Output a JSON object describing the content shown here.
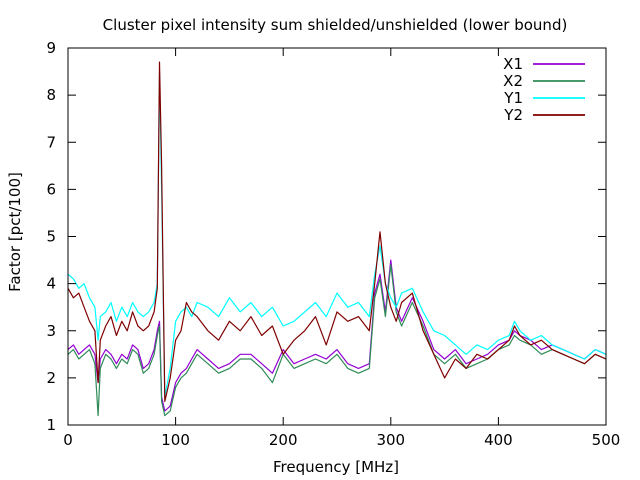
{
  "chart_data": {
    "type": "line",
    "title": "Cluster pixel intensity sum shielded/unshielded (lower bound)",
    "xlabel": "Frequency [MHz]",
    "ylabel": "Factor [pct/100]",
    "xlim": [
      0,
      500
    ],
    "ylim": [
      1,
      9
    ],
    "xticks": [
      0,
      100,
      200,
      300,
      400,
      500
    ],
    "yticks": [
      1,
      2,
      3,
      4,
      5,
      6,
      7,
      8,
      9
    ],
    "grid": false,
    "legend_position": "top-right",
    "series": [
      {
        "name": "X1",
        "color": "#9400d3",
        "x": [
          0,
          5,
          10,
          15,
          20,
          25,
          28,
          30,
          35,
          40,
          45,
          50,
          55,
          60,
          65,
          70,
          75,
          80,
          83,
          85,
          87,
          90,
          95,
          100,
          105,
          110,
          115,
          120,
          130,
          140,
          150,
          160,
          170,
          180,
          190,
          200,
          210,
          220,
          230,
          240,
          250,
          260,
          270,
          280,
          285,
          290,
          295,
          300,
          305,
          310,
          320,
          330,
          340,
          350,
          360,
          370,
          380,
          390,
          400,
          410,
          415,
          420,
          430,
          440,
          450,
          460,
          470,
          480,
          490,
          500
        ],
        "y": [
          2.6,
          2.7,
          2.5,
          2.6,
          2.7,
          2.5,
          1.9,
          2.4,
          2.6,
          2.5,
          2.3,
          2.5,
          2.4,
          2.7,
          2.6,
          2.2,
          2.3,
          2.6,
          3.0,
          3.2,
          1.6,
          1.3,
          1.4,
          1.9,
          2.1,
          2.2,
          2.4,
          2.6,
          2.4,
          2.2,
          2.3,
          2.5,
          2.5,
          2.3,
          2.1,
          2.6,
          2.3,
          2.4,
          2.5,
          2.4,
          2.6,
          2.3,
          2.2,
          2.3,
          3.8,
          4.2,
          3.4,
          4.5,
          3.5,
          3.2,
          3.7,
          3.2,
          2.6,
          2.4,
          2.6,
          2.3,
          2.4,
          2.5,
          2.7,
          2.8,
          3.0,
          2.9,
          2.8,
          2.6,
          2.7,
          2.6,
          2.5,
          2.4,
          2.6,
          2.5
        ]
      },
      {
        "name": "X2",
        "color": "#2e8b57",
        "x": [
          0,
          5,
          10,
          15,
          20,
          25,
          28,
          30,
          35,
          40,
          45,
          50,
          55,
          60,
          65,
          70,
          75,
          80,
          83,
          85,
          87,
          90,
          95,
          100,
          105,
          110,
          115,
          120,
          130,
          140,
          150,
          160,
          170,
          180,
          190,
          200,
          210,
          220,
          230,
          240,
          250,
          260,
          270,
          280,
          285,
          290,
          295,
          300,
          305,
          310,
          320,
          330,
          340,
          350,
          360,
          370,
          380,
          390,
          400,
          410,
          415,
          420,
          430,
          440,
          450,
          460,
          470,
          480,
          490,
          500
        ],
        "y": [
          2.5,
          2.6,
          2.4,
          2.5,
          2.6,
          2.3,
          1.2,
          2.2,
          2.5,
          2.4,
          2.2,
          2.4,
          2.3,
          2.6,
          2.5,
          2.1,
          2.2,
          2.5,
          2.9,
          3.1,
          1.5,
          1.2,
          1.3,
          1.8,
          2.0,
          2.1,
          2.3,
          2.5,
          2.3,
          2.1,
          2.2,
          2.4,
          2.4,
          2.2,
          1.9,
          2.5,
          2.2,
          2.3,
          2.4,
          2.3,
          2.5,
          2.2,
          2.1,
          2.2,
          3.7,
          4.1,
          3.3,
          4.4,
          3.4,
          3.1,
          3.6,
          3.1,
          2.5,
          2.3,
          2.5,
          2.2,
          2.3,
          2.4,
          2.6,
          2.7,
          2.9,
          2.8,
          2.7,
          2.5,
          2.6,
          2.5,
          2.4,
          2.3,
          2.5,
          2.4
        ]
      },
      {
        "name": "Y1",
        "color": "#00ffff",
        "x": [
          0,
          5,
          10,
          15,
          20,
          25,
          28,
          30,
          35,
          40,
          45,
          50,
          55,
          60,
          65,
          70,
          75,
          80,
          83,
          85,
          87,
          90,
          95,
          100,
          105,
          110,
          115,
          120,
          130,
          140,
          150,
          160,
          170,
          180,
          190,
          200,
          210,
          220,
          230,
          240,
          250,
          260,
          270,
          280,
          285,
          290,
          295,
          300,
          305,
          310,
          320,
          330,
          340,
          350,
          360,
          370,
          380,
          390,
          400,
          410,
          415,
          420,
          430,
          440,
          450,
          460,
          470,
          480,
          490,
          500
        ],
        "y": [
          4.2,
          4.1,
          3.9,
          4.0,
          3.7,
          3.5,
          2.8,
          3.3,
          3.4,
          3.6,
          3.2,
          3.5,
          3.3,
          3.6,
          3.4,
          3.3,
          3.4,
          3.6,
          4.0,
          8.4,
          6.0,
          1.6,
          2.2,
          3.2,
          3.4,
          3.5,
          3.3,
          3.6,
          3.5,
          3.3,
          3.7,
          3.4,
          3.6,
          3.3,
          3.5,
          3.1,
          3.2,
          3.4,
          3.6,
          3.3,
          3.8,
          3.5,
          3.6,
          3.3,
          4.2,
          4.8,
          4.0,
          3.7,
          3.5,
          3.8,
          3.9,
          3.4,
          3.0,
          2.9,
          2.7,
          2.5,
          2.7,
          2.6,
          2.8,
          2.9,
          3.2,
          3.0,
          2.8,
          2.9,
          2.7,
          2.6,
          2.5,
          2.4,
          2.6,
          2.5
        ]
      },
      {
        "name": "Y2",
        "color": "#800000",
        "x": [
          0,
          5,
          10,
          15,
          20,
          25,
          28,
          30,
          35,
          40,
          45,
          50,
          55,
          60,
          65,
          70,
          75,
          80,
          83,
          85,
          87,
          90,
          95,
          100,
          105,
          110,
          115,
          120,
          130,
          140,
          150,
          160,
          170,
          180,
          190,
          200,
          210,
          220,
          230,
          240,
          250,
          260,
          270,
          280,
          285,
          290,
          295,
          300,
          305,
          310,
          320,
          330,
          340,
          350,
          360,
          370,
          380,
          390,
          400,
          410,
          415,
          420,
          430,
          440,
          450,
          460,
          470,
          480,
          490,
          500
        ],
        "y": [
          3.9,
          3.7,
          3.8,
          3.5,
          3.2,
          3.0,
          1.9,
          2.8,
          3.1,
          3.3,
          2.9,
          3.2,
          3.0,
          3.4,
          3.1,
          3.0,
          3.1,
          3.4,
          3.9,
          8.7,
          6.5,
          1.5,
          2.0,
          2.8,
          3.0,
          3.6,
          3.4,
          3.3,
          3.0,
          2.8,
          3.2,
          3.0,
          3.3,
          2.9,
          3.1,
          2.5,
          2.8,
          3.0,
          3.3,
          2.7,
          3.4,
          3.2,
          3.3,
          3.0,
          4.0,
          5.1,
          4.0,
          3.5,
          3.2,
          3.6,
          3.8,
          3.0,
          2.5,
          2.0,
          2.4,
          2.2,
          2.5,
          2.4,
          2.6,
          2.8,
          3.1,
          2.9,
          2.7,
          2.8,
          2.6,
          2.5,
          2.4,
          2.3,
          2.5,
          2.4
        ]
      }
    ]
  }
}
